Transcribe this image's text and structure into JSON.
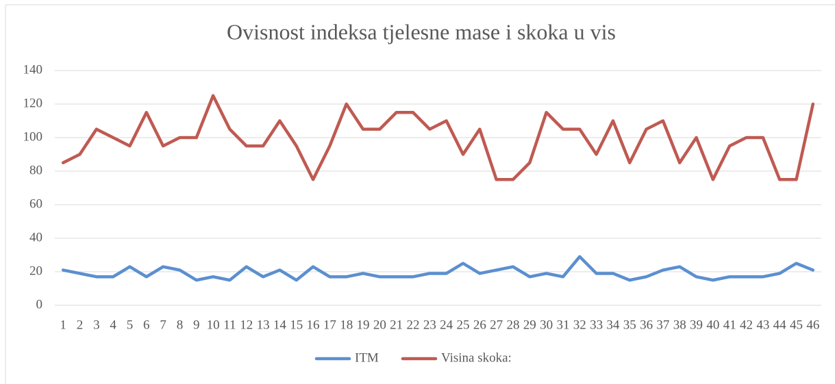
{
  "chart_data": {
    "type": "line",
    "title": "Ovisnost indeksa tjelesne mase i skoka u vis",
    "categories": [
      "1",
      "2",
      "3",
      "4",
      "5",
      "6",
      "7",
      "8",
      "9",
      "10",
      "11",
      "12",
      "13",
      "14",
      "15",
      "16",
      "17",
      "18",
      "19",
      "20",
      "21",
      "22",
      "23",
      "24",
      "25",
      "26",
      "27",
      "28",
      "29",
      "30",
      "31",
      "32",
      "33",
      "34",
      "35",
      "36",
      "37",
      "38",
      "39",
      "40",
      "41",
      "42",
      "43",
      "44",
      "45",
      "46"
    ],
    "series": [
      {
        "name": "ITM",
        "color": "#5b8fd0",
        "values": [
          21,
          19,
          17,
          17,
          23,
          17,
          23,
          21,
          15,
          17,
          15,
          23,
          17,
          21,
          15,
          23,
          17,
          17,
          19,
          17,
          17,
          17,
          19,
          19,
          25,
          19,
          21,
          23,
          17,
          19,
          17,
          29,
          19,
          19,
          15,
          17,
          21,
          23,
          17,
          15,
          17,
          17,
          17,
          19,
          25,
          21
        ]
      },
      {
        "name": "Visina skoka:",
        "color": "#bf5a52",
        "values": [
          85,
          90,
          105,
          100,
          95,
          115,
          95,
          100,
          100,
          125,
          105,
          95,
          95,
          110,
          95,
          75,
          95,
          120,
          105,
          105,
          115,
          115,
          105,
          110,
          90,
          105,
          75,
          75,
          85,
          115,
          105,
          105,
          90,
          110,
          85,
          105,
          110,
          85,
          100,
          75,
          95,
          100,
          100,
          75,
          75,
          120
        ]
      }
    ],
    "ylim": [
      0,
      140
    ],
    "yticks": [
      0,
      20,
      40,
      60,
      80,
      100,
      120,
      140
    ],
    "grid": true,
    "legend": "bottom"
  }
}
